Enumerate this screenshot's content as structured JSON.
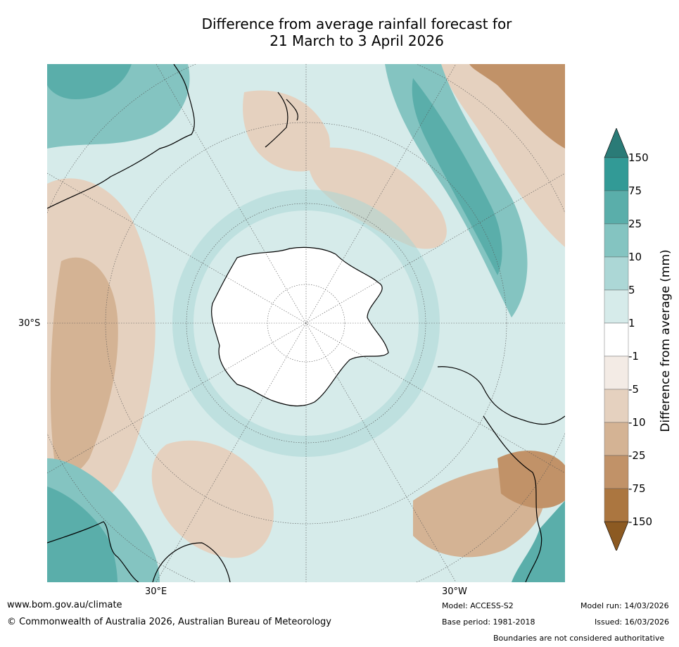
{
  "title": {
    "line1": "Difference from average rainfall forecast for",
    "line2": "21 March to 3 April 2026"
  },
  "axes": {
    "lat_label": "30°S",
    "lon_labels": [
      "30°E",
      "30°W"
    ]
  },
  "colorbar": {
    "title": "Difference from average (mm)",
    "ticks": [
      "150",
      "75",
      "25",
      "10",
      "5",
      "1",
      "-1",
      "-5",
      "-10",
      "-25",
      "-75",
      "-150"
    ],
    "colors": {
      "over_150": "#2a7b77",
      "c75_150": "#329a96",
      "c25_75": "#5aaeaa",
      "c10_25": "#84c4c1",
      "c5_10": "#acd7d6",
      "c1_5": "#d6ebea",
      "cm1_1": "#ffffff",
      "cm5_m1": "#f3ebe5",
      "cm10_m5": "#e5d1bf",
      "cm25_m10": "#d4b394",
      "cm75_m25": "#c19268",
      "cm150_m75": "#ab7640",
      "under_m150": "#8c5a22"
    }
  },
  "footer": {
    "website": "www.bom.gov.au/climate",
    "copyright": "© Commonwealth of Australia 2026, Australian Bureau of Meteorology",
    "model": "Model: ACCESS-S2",
    "base_period": "Base period: 1981-2018",
    "model_run": "Model run: 14/03/2026",
    "issued": "Issued: 16/03/2026",
    "disclaimer": "Boundaries are not considered authoritative"
  }
}
